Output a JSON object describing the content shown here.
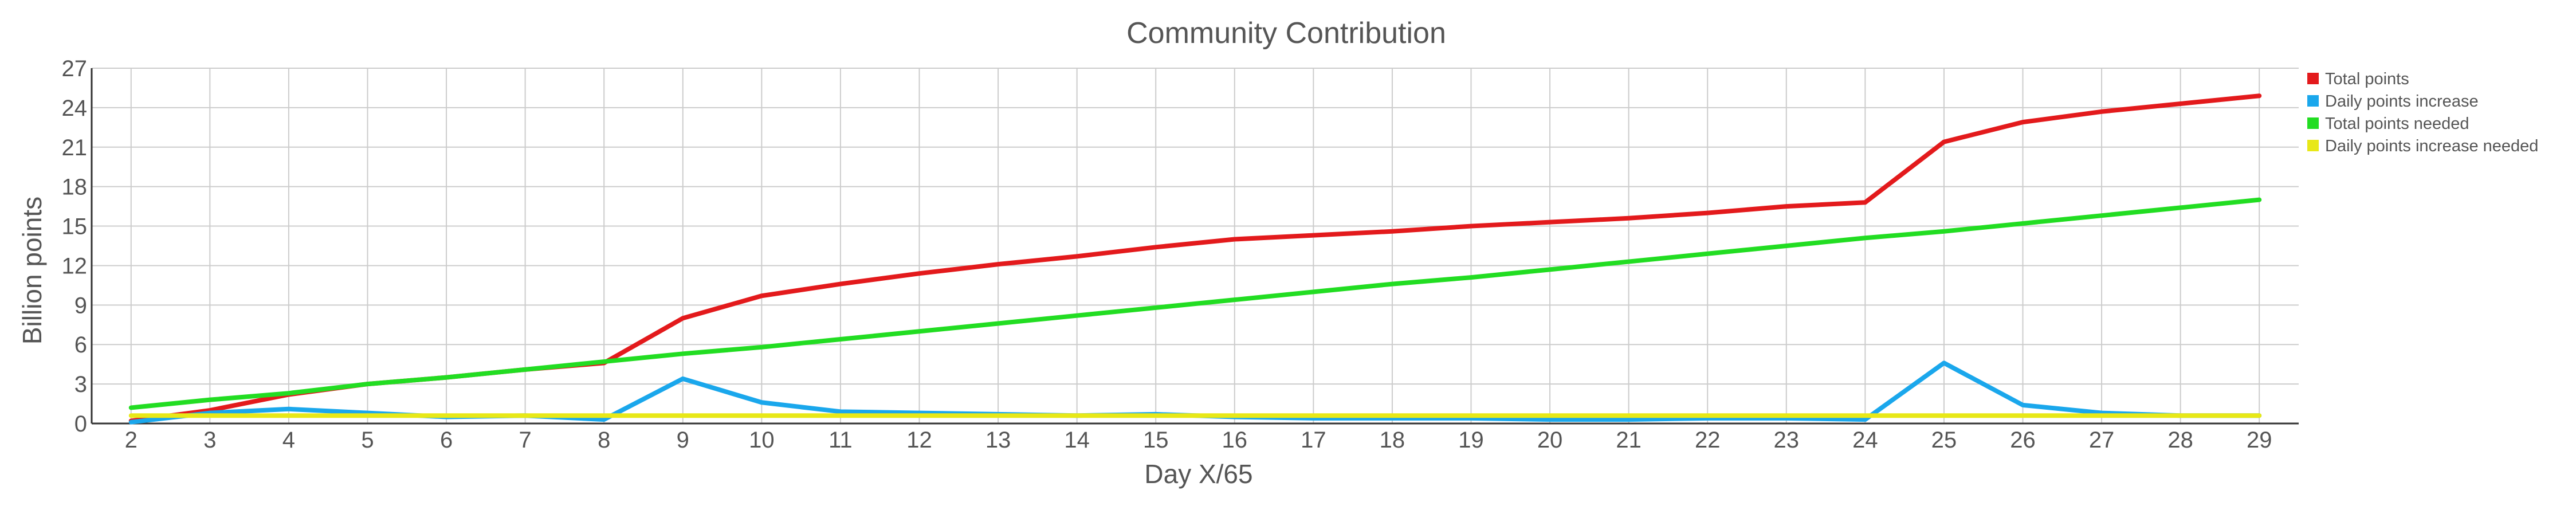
{
  "chart_data": {
    "type": "line",
    "title": "Community Contribution",
    "xlabel": "Day X/65",
    "ylabel": "Billion points",
    "x": [
      2,
      3,
      4,
      5,
      6,
      7,
      8,
      9,
      10,
      11,
      12,
      13,
      14,
      15,
      16,
      17,
      18,
      19,
      20,
      21,
      22,
      23,
      24,
      25,
      26,
      27,
      28,
      29
    ],
    "xlim": [
      1.5,
      29.5
    ],
    "ylim": [
      0,
      27
    ],
    "yticks": [
      0,
      3,
      6,
      9,
      12,
      15,
      18,
      21,
      24,
      27
    ],
    "grid": true,
    "legend_position": "top-right",
    "series": [
      {
        "name": "Total points",
        "color": "#e31a1c",
        "values": [
          0.2,
          1.0,
          2.2,
          3.0,
          3.5,
          4.1,
          4.6,
          8.0,
          9.7,
          10.6,
          11.4,
          12.1,
          12.7,
          13.4,
          14.0,
          14.3,
          14.6,
          15.0,
          15.3,
          15.6,
          16.0,
          16.5,
          16.8,
          21.4,
          22.9,
          23.7,
          24.3,
          24.9
        ]
      },
      {
        "name": "Daily points increase",
        "color": "#1aa7ec",
        "values": [
          0.1,
          0.8,
          1.1,
          0.8,
          0.5,
          0.6,
          0.3,
          3.4,
          1.6,
          0.9,
          0.8,
          0.7,
          0.6,
          0.7,
          0.5,
          0.4,
          0.4,
          0.4,
          0.3,
          0.3,
          0.4,
          0.4,
          0.3,
          4.6,
          1.4,
          0.8,
          0.6,
          0.6
        ]
      },
      {
        "name": "Total points needed",
        "color": "#22dd22",
        "values": [
          1.2,
          1.8,
          2.3,
          3.0,
          3.5,
          4.1,
          4.7,
          5.3,
          5.8,
          6.4,
          7.0,
          7.6,
          8.2,
          8.8,
          9.4,
          10.0,
          10.6,
          11.1,
          11.7,
          12.3,
          12.9,
          13.5,
          14.1,
          14.6,
          15.2,
          15.8,
          16.4,
          17.0
        ]
      },
      {
        "name": "Daily points increase needed",
        "color": "#e8e817",
        "values": [
          0.6,
          0.6,
          0.6,
          0.6,
          0.6,
          0.6,
          0.6,
          0.6,
          0.6,
          0.6,
          0.6,
          0.6,
          0.6,
          0.6,
          0.6,
          0.6,
          0.6,
          0.6,
          0.6,
          0.6,
          0.6,
          0.6,
          0.6,
          0.6,
          0.6,
          0.6,
          0.6,
          0.6
        ]
      }
    ]
  }
}
